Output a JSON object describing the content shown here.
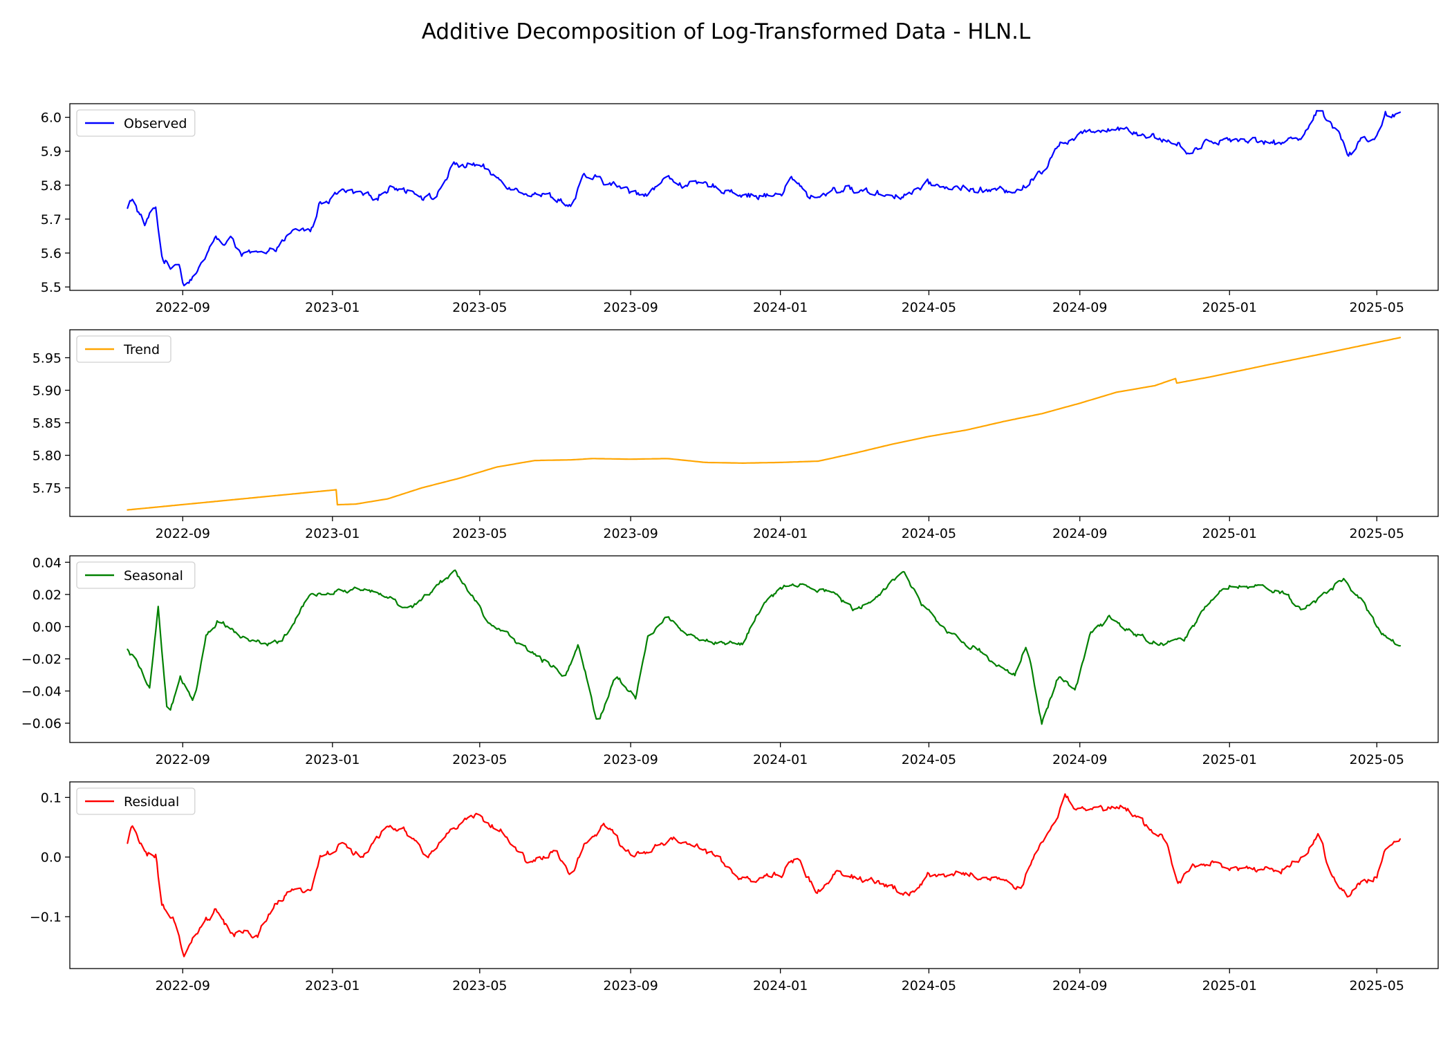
{
  "chart_data": {
    "type": "line",
    "title": "Additive Decomposition of Log-Transformed Data - HLN.L",
    "x_start": "2022-07-18",
    "x_end": "2025-05-20",
    "xlim": [
      "2022-06-01",
      "2025-06-20"
    ],
    "x_tick_labels": [
      "2022-09",
      "2023-01",
      "2023-05",
      "2023-09",
      "2024-01",
      "2024-05",
      "2024-09",
      "2025-01",
      "2025-05"
    ],
    "grid": false,
    "legend_placement": "upper-left",
    "panels": [
      {
        "id": "observed",
        "legend": "Observed",
        "color": "#0000ff",
        "ylim": [
          5.49,
          6.04
        ],
        "y_ticks": [
          5.5,
          5.6,
          5.7,
          5.8,
          5.9,
          6.0
        ],
        "y_tick_labels": [
          "5.5",
          "5.6",
          "5.7",
          "5.8",
          "5.9",
          "6.0"
        ],
        "noise": [
          0.008,
          0.03
        ],
        "points": [
          [
            "2022-07-18",
            5.73
          ],
          [
            "2022-07-22",
            5.76
          ],
          [
            "2022-08-01",
            5.68
          ],
          [
            "2022-08-10",
            5.74
          ],
          [
            "2022-08-14",
            5.6
          ],
          [
            "2022-08-22",
            5.55
          ],
          [
            "2022-08-28",
            5.59
          ],
          [
            "2022-09-02",
            5.51
          ],
          [
            "2022-09-16",
            5.56
          ],
          [
            "2022-09-28",
            5.65
          ],
          [
            "2022-10-05",
            5.62
          ],
          [
            "2022-10-12",
            5.64
          ],
          [
            "2022-10-20",
            5.6
          ],
          [
            "2022-11-10",
            5.59
          ],
          [
            "2022-11-20",
            5.63
          ],
          [
            "2022-12-01",
            5.66
          ],
          [
            "2022-12-15",
            5.67
          ],
          [
            "2022-12-22",
            5.75
          ],
          [
            "2023-01-10",
            5.78
          ],
          [
            "2023-02-01",
            5.76
          ],
          [
            "2023-02-20",
            5.8
          ],
          [
            "2023-03-10",
            5.78
          ],
          [
            "2023-03-25",
            5.76
          ],
          [
            "2023-04-10",
            5.86
          ],
          [
            "2023-05-01",
            5.86
          ],
          [
            "2023-05-10",
            5.83
          ],
          [
            "2023-06-01",
            5.79
          ],
          [
            "2023-06-15",
            5.78
          ],
          [
            "2023-07-05",
            5.76
          ],
          [
            "2023-07-15",
            5.74
          ],
          [
            "2023-07-25",
            5.82
          ],
          [
            "2023-08-10",
            5.81
          ],
          [
            "2023-09-01",
            5.78
          ],
          [
            "2023-09-15",
            5.78
          ],
          [
            "2023-10-01",
            5.82
          ],
          [
            "2023-10-20",
            5.8
          ],
          [
            "2023-11-15",
            5.79
          ],
          [
            "2023-12-10",
            5.77
          ],
          [
            "2024-01-01",
            5.77
          ],
          [
            "2024-01-10",
            5.82
          ],
          [
            "2024-01-25",
            5.76
          ],
          [
            "2024-02-15",
            5.79
          ],
          [
            "2024-03-15",
            5.78
          ],
          [
            "2024-04-10",
            5.77
          ],
          [
            "2024-05-01",
            5.8
          ],
          [
            "2024-06-01",
            5.79
          ],
          [
            "2024-07-01",
            5.78
          ],
          [
            "2024-07-20",
            5.8
          ],
          [
            "2024-08-05",
            5.86
          ],
          [
            "2024-08-12",
            5.92
          ],
          [
            "2024-09-01",
            5.94
          ],
          [
            "2024-09-15",
            5.97
          ],
          [
            "2024-10-10",
            5.97
          ],
          [
            "2024-10-25",
            5.95
          ],
          [
            "2024-11-20",
            5.92
          ],
          [
            "2024-12-01",
            5.9
          ],
          [
            "2024-12-15",
            5.93
          ],
          [
            "2025-01-15",
            5.94
          ],
          [
            "2025-02-10",
            5.92
          ],
          [
            "2025-03-01",
            5.95
          ],
          [
            "2025-03-15",
            6.02
          ],
          [
            "2025-04-01",
            5.96
          ],
          [
            "2025-04-08",
            5.88
          ],
          [
            "2025-04-18",
            5.94
          ],
          [
            "2025-05-01",
            5.94
          ],
          [
            "2025-05-08",
            6.0
          ],
          [
            "2025-05-20",
            6.0
          ]
        ]
      },
      {
        "id": "trend",
        "legend": "Trend",
        "color": "#ffa500",
        "ylim": [
          5.706,
          5.993
        ],
        "y_ticks": [
          5.75,
          5.8,
          5.85,
          5.9,
          5.95
        ],
        "y_tick_labels": [
          "5.75",
          "5.80",
          "5.85",
          "5.90",
          "5.95"
        ],
        "noise": [
          0,
          0
        ],
        "points": [
          [
            "2022-07-18",
            5.716
          ],
          [
            "2023-01-04",
            5.747
          ],
          [
            "2023-01-05",
            5.724
          ],
          [
            "2023-01-20",
            5.725
          ],
          [
            "2023-02-15",
            5.733
          ],
          [
            "2023-03-15",
            5.75
          ],
          [
            "2023-04-15",
            5.765
          ],
          [
            "2023-05-15",
            5.782
          ],
          [
            "2023-06-15",
            5.792
          ],
          [
            "2023-07-15",
            5.793
          ],
          [
            "2023-08-01",
            5.795
          ],
          [
            "2023-09-01",
            5.794
          ],
          [
            "2023-10-01",
            5.795
          ],
          [
            "2023-11-01",
            5.789
          ],
          [
            "2023-12-01",
            5.788
          ],
          [
            "2024-01-01",
            5.789
          ],
          [
            "2024-02-01",
            5.791
          ],
          [
            "2024-03-01",
            5.803
          ],
          [
            "2024-04-01",
            5.817
          ],
          [
            "2024-05-01",
            5.829
          ],
          [
            "2024-06-01",
            5.839
          ],
          [
            "2024-07-01",
            5.852
          ],
          [
            "2024-08-01",
            5.864
          ],
          [
            "2024-09-01",
            5.88
          ],
          [
            "2024-10-01",
            5.897
          ],
          [
            "2024-11-01",
            5.907
          ],
          [
            "2024-11-18",
            5.918
          ],
          [
            "2024-11-19",
            5.911
          ],
          [
            "2024-12-15",
            5.92
          ],
          [
            "2025-02-01",
            5.939
          ],
          [
            "2025-03-15",
            5.955
          ],
          [
            "2025-05-20",
            5.981
          ]
        ]
      },
      {
        "id": "seasonal",
        "legend": "Seasonal",
        "color": "#008000",
        "ylim": [
          -0.072,
          0.044
        ],
        "y_ticks": [
          -0.06,
          -0.04,
          -0.02,
          0.0,
          0.02,
          0.04
        ],
        "y_tick_labels": [
          "−0.06",
          "−0.04",
          "−0.02",
          "0.00",
          "0.02",
          "0.04"
        ],
        "noise": [
          0.004,
          0.022
        ],
        "points": [
          [
            "2022-07-18",
            -0.015
          ],
          [
            "2022-07-28",
            -0.025
          ],
          [
            "2022-08-05",
            -0.04
          ],
          [
            "2022-08-12",
            0.01
          ],
          [
            "2022-08-20",
            -0.06
          ],
          [
            "2022-08-30",
            -0.03
          ],
          [
            "2022-09-10",
            -0.045
          ],
          [
            "2022-09-20",
            -0.005
          ],
          [
            "2022-10-01",
            0.005
          ],
          [
            "2022-10-15",
            -0.005
          ],
          [
            "2022-11-01",
            -0.01
          ],
          [
            "2022-11-20",
            -0.01
          ],
          [
            "2022-12-15",
            0.02
          ],
          [
            "2023-01-01",
            0.02
          ],
          [
            "2023-01-20",
            0.025
          ],
          [
            "2023-02-15",
            0.02
          ],
          [
            "2023-03-01",
            0.01
          ],
          [
            "2023-03-20",
            0.02
          ],
          [
            "2023-04-10",
            0.035
          ],
          [
            "2023-04-25",
            0.02
          ],
          [
            "2023-05-10",
            0.0
          ],
          [
            "2023-06-01",
            -0.01
          ],
          [
            "2023-06-20",
            -0.02
          ],
          [
            "2023-07-10",
            -0.03
          ],
          [
            "2023-07-20",
            -0.01
          ],
          [
            "2023-08-05",
            -0.06
          ],
          [
            "2023-08-20",
            -0.03
          ],
          [
            "2023-09-05",
            -0.045
          ],
          [
            "2023-09-15",
            -0.005
          ],
          [
            "2023-10-01",
            0.005
          ],
          [
            "2023-10-20",
            -0.005
          ],
          [
            "2023-11-10",
            -0.01
          ],
          [
            "2023-12-01",
            -0.01
          ],
          [
            "2023-12-20",
            0.015
          ],
          [
            "2024-01-05",
            0.025
          ],
          [
            "2024-01-20",
            0.025
          ],
          [
            "2024-02-15",
            0.02
          ],
          [
            "2024-03-01",
            0.01
          ],
          [
            "2024-03-20",
            0.02
          ],
          [
            "2024-04-10",
            0.035
          ],
          [
            "2024-04-25",
            0.015
          ],
          [
            "2024-05-10",
            0.0
          ],
          [
            "2024-06-01",
            -0.01
          ],
          [
            "2024-06-20",
            -0.02
          ],
          [
            "2024-07-10",
            -0.03
          ],
          [
            "2024-07-20",
            -0.01
          ],
          [
            "2024-08-01",
            -0.06
          ],
          [
            "2024-08-15",
            -0.03
          ],
          [
            "2024-08-28",
            -0.04
          ],
          [
            "2024-09-10",
            -0.005
          ],
          [
            "2024-09-25",
            0.005
          ],
          [
            "2024-10-15",
            -0.005
          ],
          [
            "2024-11-05",
            -0.01
          ],
          [
            "2024-11-25",
            -0.01
          ],
          [
            "2024-12-15",
            0.015
          ],
          [
            "2025-01-01",
            0.025
          ],
          [
            "2025-01-20",
            0.025
          ],
          [
            "2025-02-15",
            0.02
          ],
          [
            "2025-03-01",
            0.01
          ],
          [
            "2025-03-20",
            0.02
          ],
          [
            "2025-04-05",
            0.03
          ],
          [
            "2025-04-20",
            0.015
          ],
          [
            "2025-05-05",
            -0.005
          ],
          [
            "2025-05-20",
            -0.011
          ]
        ]
      },
      {
        "id": "residual",
        "legend": "Residual",
        "color": "#ff0000",
        "ylim": [
          -0.187,
          0.126
        ],
        "y_ticks": [
          -0.1,
          0.0,
          0.1
        ],
        "y_tick_labels": [
          "−0.1",
          "0.0",
          "0.1"
        ],
        "noise": [
          0.008,
          0.028
        ],
        "points": [
          [
            "2022-07-18",
            0.02
          ],
          [
            "2022-07-22",
            0.05
          ],
          [
            "2022-08-01",
            0.01
          ],
          [
            "2022-08-10",
            0.0
          ],
          [
            "2022-08-15",
            -0.08
          ],
          [
            "2022-08-25",
            -0.11
          ],
          [
            "2022-09-02",
            -0.17
          ],
          [
            "2022-09-15",
            -0.12
          ],
          [
            "2022-09-28",
            -0.09
          ],
          [
            "2022-10-10",
            -0.13
          ],
          [
            "2022-11-01",
            -0.13
          ],
          [
            "2022-11-15",
            -0.08
          ],
          [
            "2022-12-01",
            -0.06
          ],
          [
            "2022-12-15",
            -0.05
          ],
          [
            "2022-12-22",
            0.0
          ],
          [
            "2023-01-10",
            0.02
          ],
          [
            "2023-01-25",
            0.0
          ],
          [
            "2023-02-15",
            0.05
          ],
          [
            "2023-03-01",
            0.04
          ],
          [
            "2023-03-20",
            0.0
          ],
          [
            "2023-04-10",
            0.05
          ],
          [
            "2023-05-01",
            0.07
          ],
          [
            "2023-05-20",
            0.04
          ],
          [
            "2023-06-10",
            -0.01
          ],
          [
            "2023-07-01",
            0.01
          ],
          [
            "2023-07-15",
            -0.03
          ],
          [
            "2023-07-25",
            0.02
          ],
          [
            "2023-08-10",
            0.05
          ],
          [
            "2023-08-25",
            0.02
          ],
          [
            "2023-09-10",
            0.0
          ],
          [
            "2023-10-01",
            0.03
          ],
          [
            "2023-10-20",
            0.02
          ],
          [
            "2023-11-10",
            0.0
          ],
          [
            "2023-12-01",
            -0.04
          ],
          [
            "2024-01-01",
            -0.03
          ],
          [
            "2024-01-15",
            0.0
          ],
          [
            "2024-01-30",
            -0.06
          ],
          [
            "2024-02-15",
            -0.03
          ],
          [
            "2024-03-15",
            -0.04
          ],
          [
            "2024-04-01",
            -0.05
          ],
          [
            "2024-04-15",
            -0.07
          ],
          [
            "2024-05-01",
            -0.03
          ],
          [
            "2024-06-01",
            -0.03
          ],
          [
            "2024-07-01",
            -0.04
          ],
          [
            "2024-07-15",
            -0.05
          ],
          [
            "2024-07-25",
            0.0
          ],
          [
            "2024-08-10",
            0.05
          ],
          [
            "2024-08-20",
            0.1
          ],
          [
            "2024-09-01",
            0.08
          ],
          [
            "2024-09-20",
            0.08
          ],
          [
            "2024-10-10",
            0.08
          ],
          [
            "2024-10-25",
            0.05
          ],
          [
            "2024-11-10",
            0.03
          ],
          [
            "2024-11-20",
            -0.05
          ],
          [
            "2024-12-01",
            -0.01
          ],
          [
            "2024-12-20",
            -0.01
          ],
          [
            "2025-01-15",
            -0.02
          ],
          [
            "2025-02-10",
            -0.03
          ],
          [
            "2025-03-01",
            0.0
          ],
          [
            "2025-03-15",
            0.04
          ],
          [
            "2025-03-25",
            -0.03
          ],
          [
            "2025-04-08",
            -0.07
          ],
          [
            "2025-04-20",
            -0.04
          ],
          [
            "2025-05-01",
            -0.03
          ],
          [
            "2025-05-10",
            0.02
          ],
          [
            "2025-05-20",
            0.03
          ]
        ]
      }
    ]
  }
}
